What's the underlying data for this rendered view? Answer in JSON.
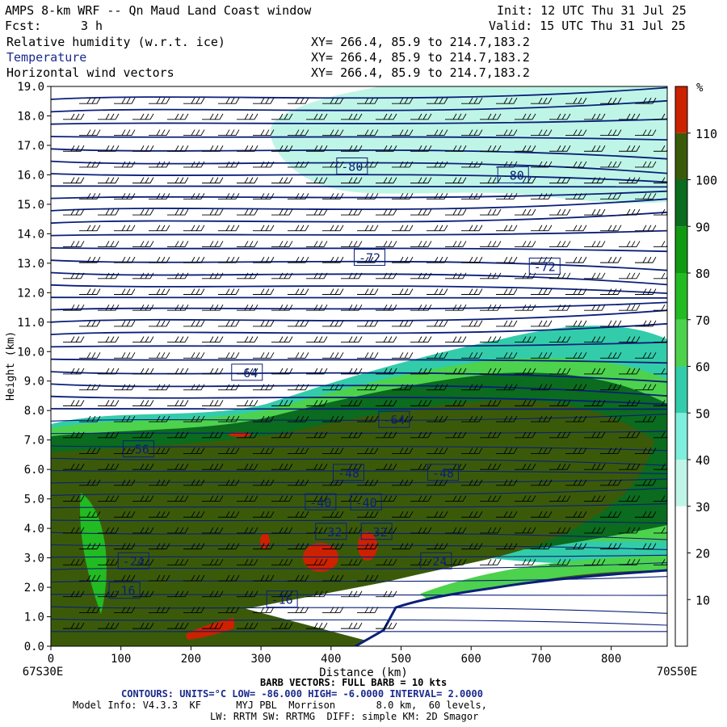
{
  "header": {
    "title": "AMPS 8-km WRF -- Qn Maud Land Coast window",
    "forecast_label": "Fcst:",
    "forecast_value": "3 h",
    "init": "Init: 12 UTC Thu 31 Jul 25",
    "valid": "Valid: 15 UTC Thu 31 Jul 25",
    "fields": [
      {
        "name": "Relative humidity (w.r.t. ice)",
        "xy": "XY= 266.4, 85.9 to 214.7,183.2"
      },
      {
        "name": "Temperature",
        "xy": "XY= 266.4, 85.9 to 214.7,183.2"
      },
      {
        "name": "Horizontal wind vectors",
        "xy": "XY= 266.4, 85.9 to 214.7,183.2"
      }
    ]
  },
  "chart_data": {
    "type": "heatmap",
    "xlabel": "Distance (km)",
    "ylabel": "Height (km)",
    "xlim": [
      0,
      880
    ],
    "ylim": [
      0.0,
      19.0
    ],
    "x_ticks": [
      0,
      100,
      200,
      300,
      400,
      500,
      600,
      700,
      800
    ],
    "y_ticks": [
      "0.0",
      "1.0",
      "2.0",
      "3.0",
      "4.0",
      "5.0",
      "6.0",
      "7.0",
      "8.0",
      "9.0",
      "10.0",
      "11.0",
      "12.0",
      "13.0",
      "14.0",
      "15.0",
      "16.0",
      "17.0",
      "18.0",
      "19.0"
    ],
    "x_start_label": "67S30E",
    "x_end_label": "70S50E",
    "colorbar": {
      "unit": "%",
      "levels": [
        10,
        20,
        30,
        40,
        50,
        60,
        70,
        80,
        90,
        100,
        110
      ],
      "colors": [
        "#ffffff",
        "#ffffff",
        "#ffffff",
        "#bff5e6",
        "#7eeedd",
        "#33ccaa",
        "#4dd24d",
        "#22bb22",
        "#119911",
        "#0b6b1e",
        "#3a5a0a",
        "#cc2200"
      ]
    },
    "contour_labels": [
      {
        "text": "-80",
        "x": 430,
        "y": 16.3
      },
      {
        "text": "-80",
        "x": 660,
        "y": 16.0
      },
      {
        "text": "-72",
        "x": 455,
        "y": 13.2
      },
      {
        "text": "-72",
        "x": 705,
        "y": 12.9
      },
      {
        "text": "-64",
        "x": 280,
        "y": 9.3
      },
      {
        "text": "-64",
        "x": 490,
        "y": 7.7
      },
      {
        "text": "-56",
        "x": 125,
        "y": 6.7
      },
      {
        "text": "-48",
        "x": 425,
        "y": 5.9
      },
      {
        "text": "-48",
        "x": 560,
        "y": 5.9
      },
      {
        "text": "-40",
        "x": 385,
        "y": 4.9
      },
      {
        "text": "-40",
        "x": 450,
        "y": 4.9
      },
      {
        "text": "-32",
        "x": 400,
        "y": 3.9
      },
      {
        "text": "-32",
        "x": 465,
        "y": 3.9
      },
      {
        "text": "-24",
        "x": 118,
        "y": 2.9
      },
      {
        "text": "-24",
        "x": 550,
        "y": 2.9
      },
      {
        "text": "-16",
        "x": 105,
        "y": 1.9
      },
      {
        "text": "-16",
        "x": 330,
        "y": 1.6
      }
    ],
    "contours": {
      "units": "°C",
      "low": "-86.000",
      "high": "-6.0000",
      "interval": "2.0000"
    },
    "barb_note": "BARB VECTORS: FULL BARB = 10 kts"
  },
  "footer": {
    "contour_line": "CONTOURS: UNITS=°C LOW= -86.000 HIGH= -6.0000 INTERVAL= 2.0000",
    "model_info": "Model Info: V4.3.3  KF      MYJ PBL  Morrison       8.0 km,  60 levels,",
    "model_info2": "LW: RRTM SW: RRTMG  DIFF: simple KM: 2D Smagor"
  },
  "colors": {
    "contour": "#0b1f7a",
    "barb": "#000000"
  }
}
